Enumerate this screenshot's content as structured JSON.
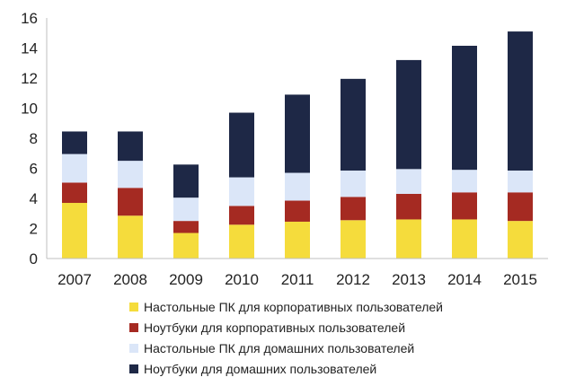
{
  "chart_data": {
    "type": "bar",
    "stacked": true,
    "categories": [
      "2007",
      "2008",
      "2009",
      "2010",
      "2011",
      "2012",
      "2013",
      "2014",
      "2015"
    ],
    "ylim": [
      0,
      16
    ],
    "yticks": [
      0,
      2,
      4,
      6,
      8,
      10,
      12,
      14,
      16
    ],
    "grid": false,
    "legend_position": "bottom",
    "series": [
      {
        "name": "Настольные ПК для корпоративных пользователей",
        "color": "#f5dc3c",
        "values": [
          3.7,
          2.85,
          1.7,
          2.25,
          2.45,
          2.55,
          2.6,
          2.6,
          2.5
        ]
      },
      {
        "name": "Ноутбуки для корпоративных пользователей",
        "color": "#a52a22",
        "values": [
          1.35,
          1.85,
          0.8,
          1.25,
          1.4,
          1.55,
          1.7,
          1.8,
          1.9
        ]
      },
      {
        "name": "Настольные ПК для домашних пользователей",
        "color": "#dbe6f8",
        "values": [
          1.9,
          1.8,
          1.55,
          1.9,
          1.85,
          1.75,
          1.65,
          1.5,
          1.45
        ]
      },
      {
        "name": "Ноутбуки для домашних пользователей",
        "color": "#1e2846",
        "values": [
          1.5,
          1.95,
          2.2,
          4.3,
          5.2,
          6.1,
          7.25,
          8.25,
          9.25
        ]
      }
    ]
  }
}
